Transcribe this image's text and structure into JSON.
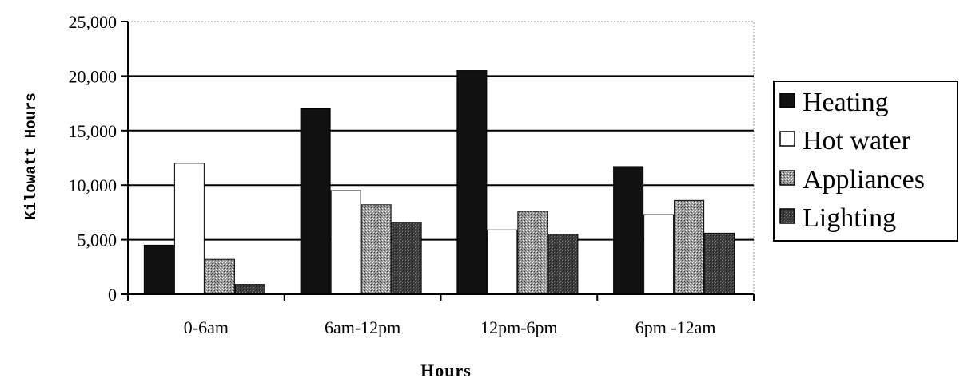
{
  "chart_data": {
    "type": "bar",
    "title": "",
    "xlabel": "Hours",
    "ylabel": "Kilowatt Hours",
    "categories": [
      "0-6am",
      "6am-12pm",
      "12pm-6pm",
      "6pm -12am"
    ],
    "ylim": [
      0,
      25000
    ],
    "yticks": [
      0,
      5000,
      10000,
      15000,
      20000,
      25000
    ],
    "ytick_labels": [
      "0",
      "5,000",
      "10,000",
      "15,000",
      "20,000",
      "25,000"
    ],
    "grid": true,
    "legend_position": "right",
    "series": [
      {
        "name": "Heating",
        "values": [
          4500,
          17000,
          20500,
          11700
        ],
        "color": "#111111",
        "pattern": "solid-dark"
      },
      {
        "name": "Hot water",
        "values": [
          12000,
          9500,
          5900,
          7300
        ],
        "color": "#ffffff",
        "pattern": "white"
      },
      {
        "name": "Appliances",
        "values": [
          3200,
          8200,
          7600,
          8600
        ],
        "color": "#8a8a8a",
        "pattern": "speckled-light"
      },
      {
        "name": "Lighting",
        "values": [
          900,
          6600,
          5500,
          5600
        ],
        "color": "#3a3a3a",
        "pattern": "speckled-dark"
      }
    ]
  }
}
